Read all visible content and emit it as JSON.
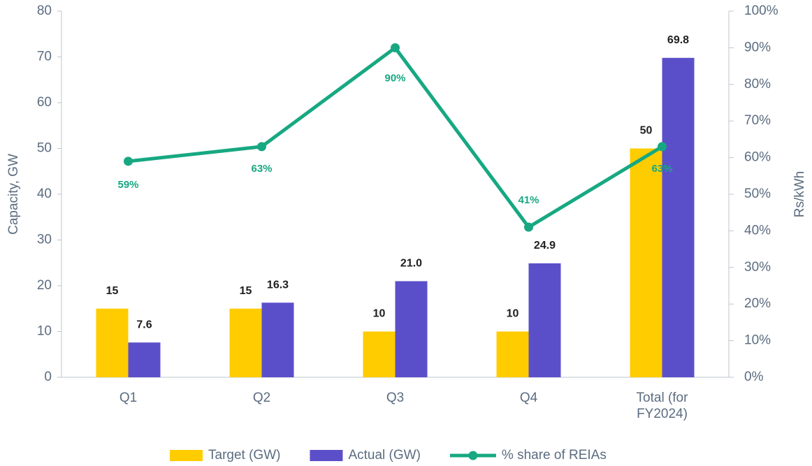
{
  "chart_data": {
    "type": "bar_line",
    "categories": [
      "Q1",
      "Q2",
      "Q3",
      "Q4",
      "Total (for FY2024)"
    ],
    "series": [
      {
        "name": "Target (GW)",
        "type": "bar",
        "color": "#FFCC00",
        "values": [
          15,
          15,
          10,
          10,
          50
        ]
      },
      {
        "name": "Actual (GW)",
        "type": "bar",
        "color": "#5B4FC9",
        "values": [
          7.6,
          16.3,
          21.0,
          24.9,
          69.8
        ],
        "value_labels": [
          "7.6",
          "16.3",
          "21.0",
          "24.9",
          "69.8"
        ]
      },
      {
        "name": "% share of REIAs",
        "type": "line",
        "axis": "y2",
        "color": "#17A882",
        "values": [
          59,
          63,
          90,
          41,
          63
        ],
        "value_labels": [
          "59%",
          "63%",
          "90%",
          "41%",
          "63%"
        ]
      }
    ],
    "ylabel": "Capacity, GW",
    "y2label": "Rs/kWh",
    "ylim": [
      0,
      80
    ],
    "yticks": [
      0,
      10,
      20,
      30,
      40,
      50,
      60,
      70,
      80
    ],
    "y2lim": [
      0,
      100
    ],
    "y2ticks": [
      {
        "value": 0,
        "label": "0%"
      },
      {
        "value": 10,
        "label": "10%"
      },
      {
        "value": 20,
        "label": "20%"
      },
      {
        "value": 30,
        "label": "30%"
      },
      {
        "value": 40,
        "label": "40%"
      },
      {
        "value": 50,
        "label": "50%"
      },
      {
        "value": 60,
        "label": "60%"
      },
      {
        "value": 70,
        "label": "70%"
      },
      {
        "value": 80,
        "label": "80%"
      },
      {
        "value": 90,
        "label": "90%"
      },
      {
        "value": 100,
        "label": "100%"
      }
    ],
    "legend": "bottom"
  }
}
